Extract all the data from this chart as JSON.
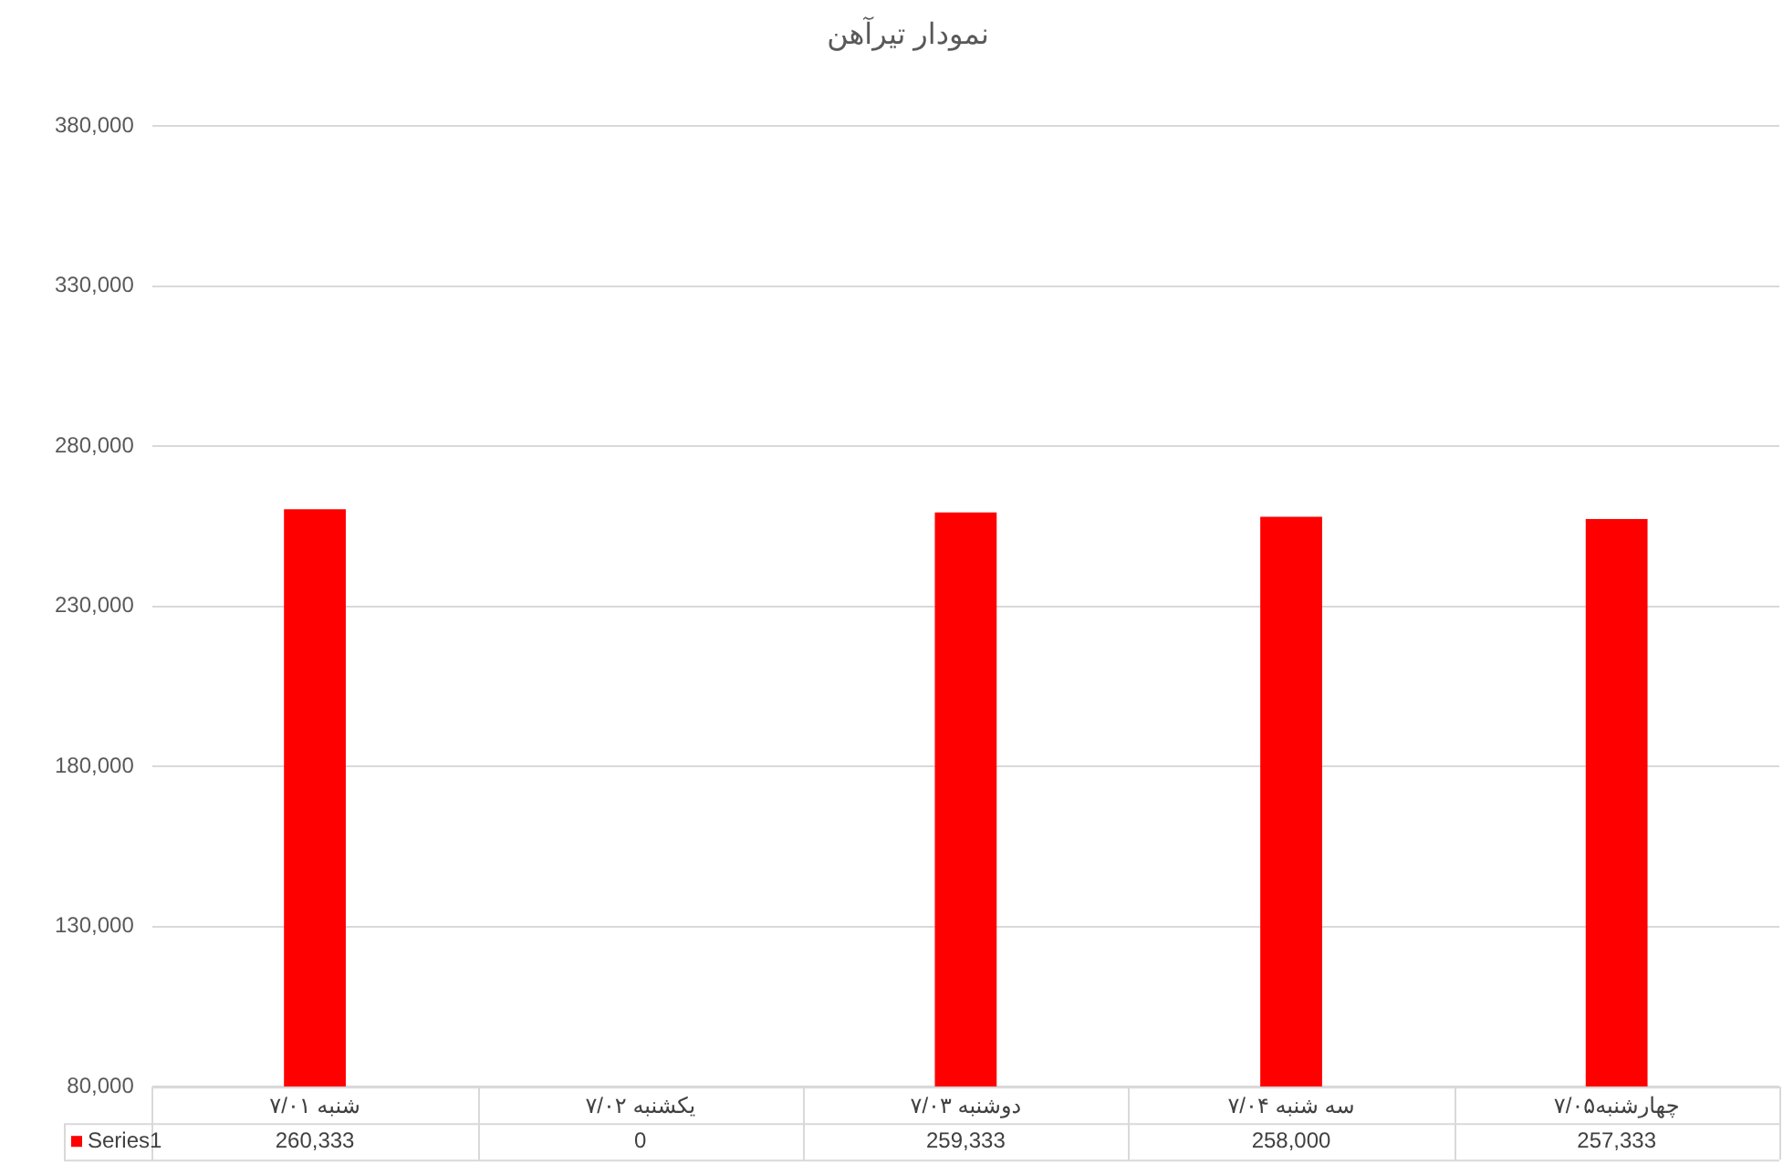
{
  "chart_data": {
    "type": "bar",
    "title": "نمودار تیرآهن",
    "categories": [
      "شنبه ۷/۰۱",
      "یکشنبه ۷/۰۲",
      "دوشنبه ۷/۰۳",
      "سه شنبه ۷/۰۴",
      "چهارشنبه۷/۰۵"
    ],
    "series": [
      {
        "name": "Series1",
        "color": "#ff0000",
        "values": [
          260333,
          null,
          259333,
          258000,
          257333
        ],
        "value_labels": [
          "260,333",
          "0",
          "259,333",
          "258,000",
          "257,333"
        ]
      }
    ],
    "ylim": [
      80000,
      380000
    ],
    "yticks": [
      {
        "value": 80000,
        "label": "80,000"
      },
      {
        "value": 130000,
        "label": "130,000"
      },
      {
        "value": 180000,
        "label": "180,000"
      },
      {
        "value": 230000,
        "label": "230,000"
      },
      {
        "value": 280000,
        "label": "280,000"
      },
      {
        "value": 330000,
        "label": "330,000"
      },
      {
        "value": 380000,
        "label": "380,000"
      }
    ],
    "grid": "y"
  }
}
